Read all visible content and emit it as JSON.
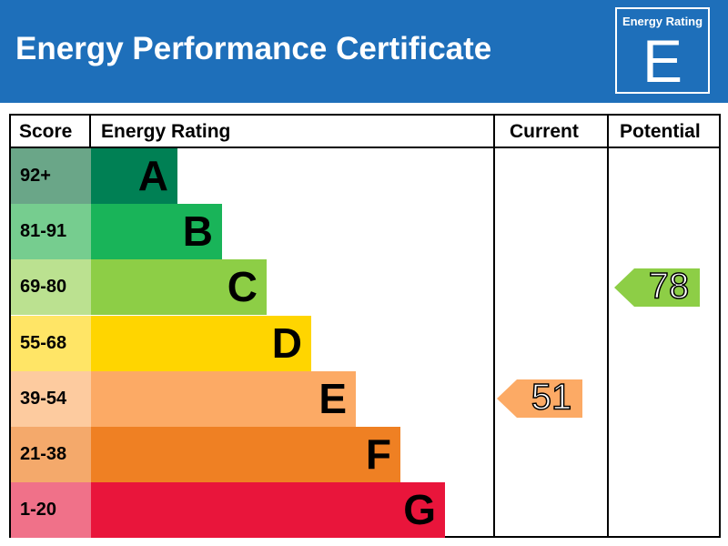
{
  "header": {
    "title": "Energy Performance Certificate",
    "badge_title": "Energy Rating",
    "badge_letter": "E"
  },
  "table": {
    "col_score": "Score",
    "col_rating": "Energy Rating",
    "col_current": "Current",
    "col_potential": "Potential"
  },
  "chart_data": {
    "type": "bar",
    "title": "Energy Performance Certificate",
    "categories": [
      "A",
      "B",
      "C",
      "D",
      "E",
      "F",
      "G"
    ],
    "score_ranges": [
      "92+",
      "81-91",
      "69-80",
      "55-68",
      "39-54",
      "21-38",
      "1-20"
    ],
    "bands": [
      {
        "letter": "A",
        "range": "92+",
        "bar_color": "#008054",
        "score_color": "#6aa688"
      },
      {
        "letter": "B",
        "range": "81-91",
        "bar_color": "#19b459",
        "score_color": "#76cd8f"
      },
      {
        "letter": "C",
        "range": "69-80",
        "bar_color": "#8dce46",
        "score_color": "#bbe190"
      },
      {
        "letter": "D",
        "range": "55-68",
        "bar_color": "#ffd500",
        "score_color": "#ffe566"
      },
      {
        "letter": "E",
        "range": "39-54",
        "bar_color": "#fcaa65",
        "score_color": "#fdcb9f"
      },
      {
        "letter": "F",
        "range": "21-38",
        "bar_color": "#ef8023",
        "score_color": "#f4a96b"
      },
      {
        "letter": "G",
        "range": "1-20",
        "bar_color": "#e9153b",
        "score_color": "#f07189"
      }
    ],
    "series": [
      {
        "name": "Current",
        "value": 51,
        "band": "E",
        "color": "#fcaa65"
      },
      {
        "name": "Potential",
        "value": 78,
        "band": "C",
        "color": "#8dce46"
      }
    ]
  },
  "colors": {
    "header_bg": "#1e6fba",
    "header_text": "#ffffff",
    "border": "#000000"
  }
}
